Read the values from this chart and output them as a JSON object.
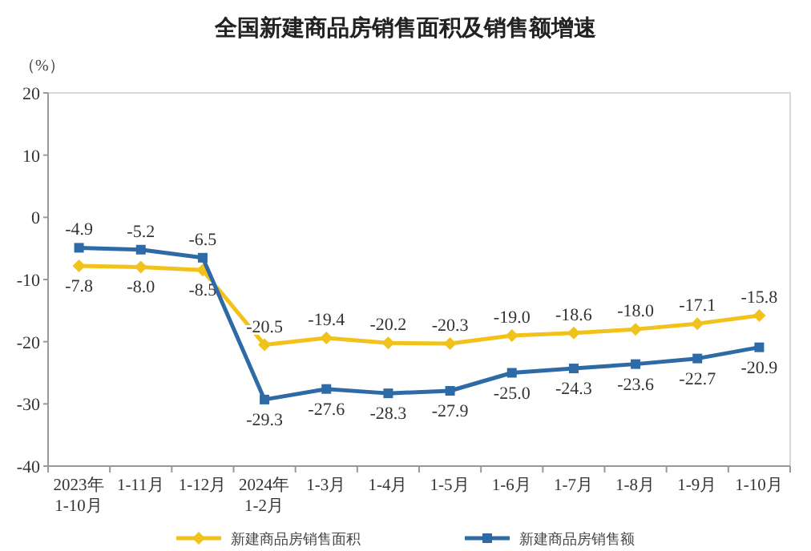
{
  "chart_data": {
    "type": "line",
    "title": "全国新建商品房销售面积及销售额增速",
    "ylabel": "（%）",
    "categories": [
      "2023年\n1-10月",
      "1-11月",
      "1-12月",
      "2024年\n1-2月",
      "1-3月",
      "1-4月",
      "1-5月",
      "1-6月",
      "1-7月",
      "1-8月",
      "1-9月",
      "1-10月"
    ],
    "series": [
      {
        "name": "新建商品房销售面积",
        "color": "#f2c21c",
        "marker": "diamond",
        "values": [
          -7.8,
          -8.0,
          -8.5,
          -20.5,
          -19.4,
          -20.2,
          -20.3,
          -19.0,
          -18.6,
          -18.0,
          -17.1,
          -15.8
        ],
        "value_labels": [
          "-7.8",
          "-8.0",
          "-8.5",
          "-20.5",
          "-19.4",
          "-20.2",
          "-20.3",
          "-19.0",
          "-18.6",
          "-18.0",
          "-17.1",
          "-15.8"
        ]
      },
      {
        "name": "新建商品房销售额",
        "color": "#2e6aa6",
        "marker": "square",
        "values": [
          -4.9,
          -5.2,
          -6.5,
          -29.3,
          -27.6,
          -28.3,
          -27.9,
          -25.0,
          -24.3,
          -23.6,
          -22.7,
          -20.9
        ],
        "value_labels": [
          "-4.9",
          "-5.2",
          "-6.5",
          "-29.3",
          "-27.6",
          "-28.3",
          "-27.9",
          "-25.0",
          "-24.3",
          "-23.6",
          "-22.7",
          "-20.9"
        ]
      }
    ],
    "ylim": [
      -40,
      20
    ],
    "yticks": [
      -40,
      -30,
      -20,
      -10,
      0,
      10,
      20
    ],
    "grid": false,
    "legend": "bottom"
  }
}
